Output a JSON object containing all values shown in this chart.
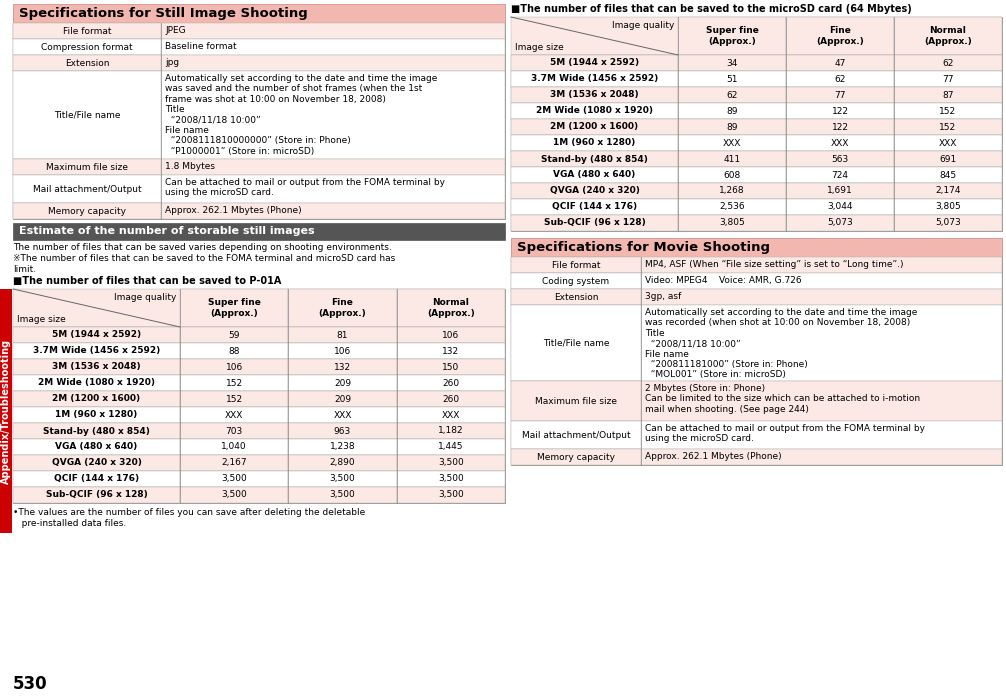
{
  "page_num": "530",
  "sidebar_text": "Appendix/Troubleshooting",
  "sidebar_color": "#cc0000",
  "bg_color": "#ffffff",
  "header_pink": "#f2b8b0",
  "cell_pink": "#fce8e4",
  "cell_white": "#ffffff",
  "dark_header": "#555555",
  "section1_title": "Specifications for Still Image Shooting",
  "specs_still": [
    [
      "File format",
      "JPEG"
    ],
    [
      "Compression format",
      "Baseline format"
    ],
    [
      "Extension",
      "jpg"
    ],
    [
      "Title/File name",
      "Automatically set according to the date and time the image\nwas saved and the number of shot frames (when the 1st\nframe was shot at 10:00 on November 18, 2008)\nTitle\n  “2008/11/18 10:00”\nFile name\n  “2008111810000000” (Store in: Phone)\n  “P1000001” (Store in: microSD)"
    ],
    [
      "Maximum file size",
      "1.8 Mbytes"
    ],
    [
      "Mail attachment/Output",
      "Can be attached to mail or output from the FOMA terminal by\nusing the microSD card."
    ],
    [
      "Memory capacity",
      "Approx. 262.1 Mbytes (Phone)"
    ]
  ],
  "specs_still_row_heights": [
    16,
    16,
    16,
    88,
    16,
    28,
    16
  ],
  "section2_title": "Estimate of the number of storable still images",
  "section2_note1": "The number of files that can be saved varies depending on shooting environments.",
  "section2_note2": "※The number of files that can be saved to the FOMA terminal and microSD card has",
  "section2_note3": "limit.",
  "table_p01a_label": "■The number of files that can be saved to P-01A",
  "table_p01a_rows": [
    [
      "5M (1944 x 2592)",
      "59",
      "81",
      "106"
    ],
    [
      "3.7M Wide (1456 x 2592)",
      "88",
      "106",
      "132"
    ],
    [
      "3M (1536 x 2048)",
      "106",
      "132",
      "150"
    ],
    [
      "2M Wide (1080 x 1920)",
      "152",
      "209",
      "260"
    ],
    [
      "2M (1200 x 1600)",
      "152",
      "209",
      "260"
    ],
    [
      "1M (960 x 1280)",
      "XXX",
      "XXX",
      "XXX"
    ],
    [
      "Stand-by (480 x 854)",
      "703",
      "963",
      "1,182"
    ],
    [
      "VGA (480 x 640)",
      "1,040",
      "1,238",
      "1,445"
    ],
    [
      "QVGA (240 x 320)",
      "2,167",
      "2,890",
      "3,500"
    ],
    [
      "QCIF (144 x 176)",
      "3,500",
      "3,500",
      "3,500"
    ],
    [
      "Sub-QCIF (96 x 128)",
      "3,500",
      "3,500",
      "3,500"
    ]
  ],
  "table_p01a_footnote_line1": "•The values are the number of files you can save after deleting the deletable",
  "table_p01a_footnote_line2": "   pre-installed data files.",
  "table_sd_label": "■The number of files that can be saved to the microSD card (64 Mbytes)",
  "table_sd_rows": [
    [
      "5M (1944 x 2592)",
      "34",
      "47",
      "62"
    ],
    [
      "3.7M Wide (1456 x 2592)",
      "51",
      "62",
      "77"
    ],
    [
      "3M (1536 x 2048)",
      "62",
      "77",
      "87"
    ],
    [
      "2M Wide (1080 x 1920)",
      "89",
      "122",
      "152"
    ],
    [
      "2M (1200 x 1600)",
      "89",
      "122",
      "152"
    ],
    [
      "1M (960 x 1280)",
      "XXX",
      "XXX",
      "XXX"
    ],
    [
      "Stand-by (480 x 854)",
      "411",
      "563",
      "691"
    ],
    [
      "VGA (480 x 640)",
      "608",
      "724",
      "845"
    ],
    [
      "QVGA (240 x 320)",
      "1,268",
      "1,691",
      "2,174"
    ],
    [
      "QCIF (144 x 176)",
      "2,536",
      "3,044",
      "3,805"
    ],
    [
      "Sub-QCIF (96 x 128)",
      "3,805",
      "5,073",
      "5,073"
    ]
  ],
  "section3_title": "Specifications for Movie Shooting",
  "specs_movie": [
    [
      "File format",
      "MP4, ASF (When “File size setting” is set to “Long time”.)"
    ],
    [
      "Coding system",
      "Video: MPEG4    Voice: AMR, G.726"
    ],
    [
      "Extension",
      "3gp, asf"
    ],
    [
      "Title/File name",
      "Automatically set according to the date and time the image\nwas recorded (when shot at 10:00 on November 18, 2008)\nTitle\n  “2008/11/18 10:00”\nFile name\n  “200811181000” (Store in: Phone)\n  “MOL001” (Store in: microSD)"
    ],
    [
      "Maximum file size",
      "2 Mbytes (Store in: Phone)\nCan be limited to the size which can be attached to i-motion\nmail when shooting. (See page 244)"
    ],
    [
      "Mail attachment/Output",
      "Can be attached to mail or output from the FOMA terminal by\nusing the microSD card."
    ],
    [
      "Memory capacity",
      "Approx. 262.1 Mbytes (Phone)"
    ]
  ],
  "specs_movie_row_heights": [
    16,
    16,
    16,
    76,
    40,
    28,
    16
  ]
}
